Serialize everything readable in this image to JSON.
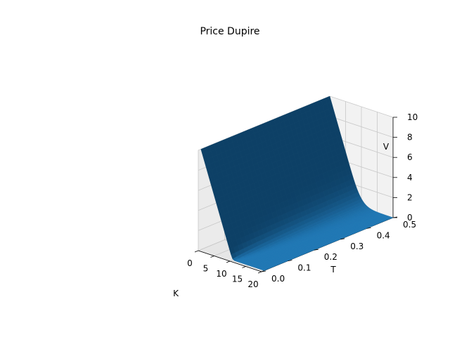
{
  "chart_data": {
    "type": "surface3d",
    "title": "Price Dupire",
    "xlabel": "K",
    "ylabel": "T",
    "zlabel": "V",
    "xlim": [
      0,
      20
    ],
    "ylim": [
      0,
      0.5
    ],
    "zlim": [
      0,
      10
    ],
    "xticks": [
      0,
      5,
      10,
      15,
      20
    ],
    "yticks": [
      0.0,
      0.1,
      0.2,
      0.3,
      0.4,
      0.5
    ],
    "zticks": [
      0,
      2,
      4,
      6,
      8,
      10
    ],
    "xtick_labels": [
      "0",
      "5",
      "10",
      "15",
      "20"
    ],
    "ytick_labels": [
      "0.0",
      "0.1",
      "0.2",
      "0.3",
      "0.4",
      "0.5"
    ],
    "ztick_labels": [
      "0",
      "2",
      "4",
      "6",
      "8",
      "10"
    ],
    "x_range": [
      0,
      20
    ],
    "y_range": [
      0.01,
      0.5
    ],
    "surface_color": "#1f77b4",
    "grid": true,
    "pane_color": "#f2f2f2",
    "samples": [
      {
        "K": 0,
        "T": 0.01,
        "V": 10.0
      },
      {
        "K": 0,
        "T": 0.5,
        "V": 10.0
      },
      {
        "K": 5,
        "T": 0.01,
        "V": 5.0
      },
      {
        "K": 5,
        "T": 0.5,
        "V": 5.0
      },
      {
        "K": 10,
        "T": 0.01,
        "V": 0.0
      },
      {
        "K": 10,
        "T": 0.5,
        "V": 1.2
      },
      {
        "K": 15,
        "T": 0.5,
        "V": 0.35
      },
      {
        "K": 20,
        "T": 0.01,
        "V": 0.0
      },
      {
        "K": 20,
        "T": 0.5,
        "V": 0.05
      }
    ]
  }
}
